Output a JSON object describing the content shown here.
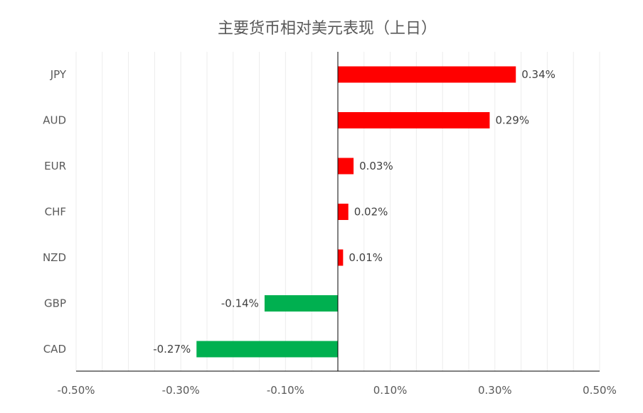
{
  "chart_data": {
    "type": "bar",
    "orientation": "horizontal",
    "title": "主要货币相对美元表现（上日）",
    "xlabel": "",
    "ylabel": "",
    "categories": [
      "JPY",
      "AUD",
      "EUR",
      "CHF",
      "NZD",
      "GBP",
      "CAD"
    ],
    "values": [
      0.34,
      0.29,
      0.03,
      0.02,
      0.01,
      -0.14,
      -0.27
    ],
    "value_labels": [
      "0.34%",
      "0.29%",
      "0.03%",
      "0.02%",
      "0.01%",
      "-0.14%",
      "-0.27%"
    ],
    "xlim": [
      -0.5,
      0.5
    ],
    "x_tick_labels": [
      "-0.50%",
      "-0.30%",
      "-0.10%",
      "0.10%",
      "0.30%",
      "0.50%"
    ],
    "x_tick_values": [
      -0.5,
      -0.3,
      -0.1,
      0.1,
      0.3,
      0.5
    ],
    "grid": true,
    "legend": "none",
    "colors": {
      "positive": "#ff0000",
      "negative": "#00b050",
      "grid": "#ececec",
      "axis": "#000000"
    }
  }
}
